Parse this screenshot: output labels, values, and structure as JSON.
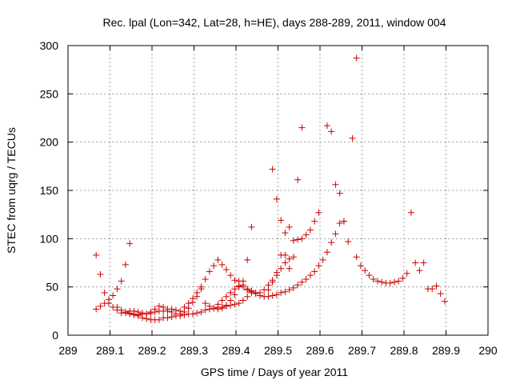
{
  "chart_data": {
    "type": "scatter",
    "title": "Rec. lpal (Lon=342, Lat=28, h=HE), days 288-289, 2011, window 004",
    "xlabel": "GPS time / Days of year 2011",
    "ylabel": "STEC from uqrg / TECUs",
    "xlim": [
      289,
      290
    ],
    "ylim": [
      0,
      300
    ],
    "xticks": [
      289,
      289.1,
      289.2,
      289.3,
      289.4,
      289.5,
      289.6,
      289.7,
      289.8,
      289.9,
      290
    ],
    "xtick_labels": [
      "289",
      "289.1",
      "289.2",
      "289.3",
      "289.4",
      "289.5",
      "289.6",
      "289.7",
      "289.8",
      "289.9",
      "290"
    ],
    "yticks": [
      0,
      50,
      100,
      150,
      200,
      250,
      300
    ],
    "ytick_labels": [
      "0",
      "50",
      "100",
      "150",
      "200",
      "250",
      "300"
    ],
    "grid": true,
    "marker": "+",
    "colors": {
      "points": "#cc0000",
      "grid": "#a0a0a0",
      "axes": "#000000"
    },
    "series": [
      {
        "points": [
          [
            289.067,
            83
          ],
          [
            289.077,
            63
          ],
          [
            289.087,
            44
          ],
          [
            289.097,
            37
          ],
          [
            289.107,
            41
          ],
          [
            289.117,
            48
          ],
          [
            289.127,
            56
          ],
          [
            289.137,
            73
          ],
          [
            289.147,
            95
          ],
          [
            289.067,
            27
          ],
          [
            289.077,
            30
          ],
          [
            289.087,
            33
          ],
          [
            289.097,
            33
          ],
          [
            289.107,
            29
          ],
          [
            289.117,
            26
          ],
          [
            289.127,
            23
          ],
          [
            289.137,
            23
          ],
          [
            289.147,
            23
          ],
          [
            289.157,
            22
          ],
          [
            289.167,
            20
          ],
          [
            289.177,
            18
          ],
          [
            289.187,
            17
          ],
          [
            289.197,
            16
          ],
          [
            289.207,
            16
          ],
          [
            289.217,
            16
          ],
          [
            289.227,
            18
          ],
          [
            289.237,
            18
          ],
          [
            289.247,
            19
          ],
          [
            289.257,
            20
          ],
          [
            289.267,
            20
          ],
          [
            289.277,
            21
          ],
          [
            289.287,
            22
          ],
          [
            289.297,
            22
          ],
          [
            289.307,
            23
          ],
          [
            289.317,
            24
          ],
          [
            289.327,
            26
          ],
          [
            289.337,
            27
          ],
          [
            289.347,
            28
          ],
          [
            289.357,
            29
          ],
          [
            289.367,
            29
          ],
          [
            289.377,
            30
          ],
          [
            289.387,
            31
          ],
          [
            289.397,
            32
          ],
          [
            289.407,
            33
          ],
          [
            289.417,
            36
          ],
          [
            289.427,
            40
          ],
          [
            289.437,
            45
          ],
          [
            289.117,
            29
          ],
          [
            289.127,
            26
          ],
          [
            289.137,
            24
          ],
          [
            289.147,
            22
          ],
          [
            289.157,
            21
          ],
          [
            289.167,
            21
          ],
          [
            289.177,
            22
          ],
          [
            289.187,
            22
          ],
          [
            289.197,
            23
          ],
          [
            289.207,
            24
          ],
          [
            289.217,
            25
          ],
          [
            289.227,
            25
          ],
          [
            289.237,
            25
          ],
          [
            289.247,
            24
          ],
          [
            289.257,
            22
          ],
          [
            289.267,
            22
          ],
          [
            289.277,
            24
          ],
          [
            289.287,
            28
          ],
          [
            289.297,
            34
          ],
          [
            289.307,
            40
          ],
          [
            289.317,
            48
          ],
          [
            289.147,
            25
          ],
          [
            289.157,
            25
          ],
          [
            289.167,
            24
          ],
          [
            289.177,
            23
          ],
          [
            289.187,
            22
          ],
          [
            289.197,
            24
          ],
          [
            289.207,
            27
          ],
          [
            289.217,
            30
          ],
          [
            289.227,
            29
          ],
          [
            289.237,
            27
          ],
          [
            289.247,
            27
          ],
          [
            289.257,
            26
          ],
          [
            289.267,
            25
          ],
          [
            289.277,
            29
          ],
          [
            289.287,
            33
          ],
          [
            289.297,
            38
          ],
          [
            289.307,
            44
          ],
          [
            289.317,
            50
          ],
          [
            289.327,
            58
          ],
          [
            289.337,
            66
          ],
          [
            289.347,
            72
          ],
          [
            289.357,
            78
          ],
          [
            289.367,
            73
          ],
          [
            289.377,
            68
          ],
          [
            289.387,
            62
          ],
          [
            289.397,
            57
          ],
          [
            289.407,
            56
          ],
          [
            289.417,
            52
          ],
          [
            289.427,
            48
          ],
          [
            289.437,
            44
          ],
          [
            289.447,
            43
          ],
          [
            289.457,
            44
          ],
          [
            289.467,
            47
          ],
          [
            289.477,
            52
          ],
          [
            289.487,
            57
          ],
          [
            289.497,
            62
          ],
          [
            289.507,
            69
          ],
          [
            289.517,
            75
          ],
          [
            289.527,
            79
          ],
          [
            289.327,
            33
          ],
          [
            289.337,
            30
          ],
          [
            289.347,
            28
          ],
          [
            289.357,
            27
          ],
          [
            289.367,
            28
          ],
          [
            289.377,
            31
          ],
          [
            289.387,
            36
          ],
          [
            289.397,
            42
          ],
          [
            289.407,
            50
          ],
          [
            289.417,
            56
          ],
          [
            289.427,
            78
          ],
          [
            289.437,
            112
          ],
          [
            289.357,
            32
          ],
          [
            289.367,
            36
          ],
          [
            289.377,
            40
          ],
          [
            289.387,
            44
          ],
          [
            289.397,
            48
          ],
          [
            289.407,
            51
          ],
          [
            289.417,
            50
          ],
          [
            289.427,
            47
          ],
          [
            289.437,
            46
          ],
          [
            289.447,
            44
          ],
          [
            289.457,
            41
          ],
          [
            289.467,
            40
          ],
          [
            289.477,
            40
          ],
          [
            289.487,
            41
          ],
          [
            289.497,
            42
          ],
          [
            289.507,
            44
          ],
          [
            289.517,
            45
          ],
          [
            289.527,
            47
          ],
          [
            289.537,
            49
          ],
          [
            289.547,
            52
          ],
          [
            289.557,
            55
          ],
          [
            289.567,
            58
          ],
          [
            289.577,
            62
          ],
          [
            289.587,
            66
          ],
          [
            289.597,
            72
          ],
          [
            289.607,
            78
          ],
          [
            289.617,
            86
          ],
          [
            289.627,
            96
          ],
          [
            289.637,
            105
          ],
          [
            289.647,
            116
          ],
          [
            289.657,
            118
          ],
          [
            289.477,
            47
          ],
          [
            289.487,
            55
          ],
          [
            289.497,
            65
          ],
          [
            289.507,
            83
          ],
          [
            289.517,
            106
          ],
          [
            289.527,
            112
          ],
          [
            289.537,
            98
          ],
          [
            289.547,
            99
          ],
          [
            289.557,
            100
          ],
          [
            289.567,
            104
          ],
          [
            289.577,
            109
          ],
          [
            289.587,
            118
          ],
          [
            289.597,
            127
          ],
          [
            289.487,
            172
          ],
          [
            289.497,
            141
          ],
          [
            289.507,
            119
          ],
          [
            289.517,
            83
          ],
          [
            289.527,
            69
          ],
          [
            289.537,
            81
          ],
          [
            289.547,
            161
          ],
          [
            289.557,
            215
          ],
          [
            289.617,
            217
          ],
          [
            289.627,
            211
          ],
          [
            289.637,
            156
          ],
          [
            289.647,
            147
          ],
          [
            289.657,
            118
          ],
          [
            289.667,
            97
          ],
          [
            289.677,
            204
          ],
          [
            289.687,
            287
          ],
          [
            289.687,
            81
          ],
          [
            289.697,
            72
          ],
          [
            289.707,
            67
          ],
          [
            289.717,
            62
          ],
          [
            289.727,
            58
          ],
          [
            289.737,
            56
          ],
          [
            289.747,
            55
          ],
          [
            289.757,
            54
          ],
          [
            289.767,
            54
          ],
          [
            289.777,
            55
          ],
          [
            289.787,
            56
          ],
          [
            289.797,
            59
          ],
          [
            289.807,
            64
          ],
          [
            289.817,
            127
          ],
          [
            289.827,
            75
          ],
          [
            289.837,
            67
          ],
          [
            289.847,
            75
          ],
          [
            289.857,
            48
          ],
          [
            289.867,
            48
          ],
          [
            289.877,
            51
          ],
          [
            289.887,
            43
          ],
          [
            289.897,
            35
          ]
        ]
      }
    ]
  }
}
